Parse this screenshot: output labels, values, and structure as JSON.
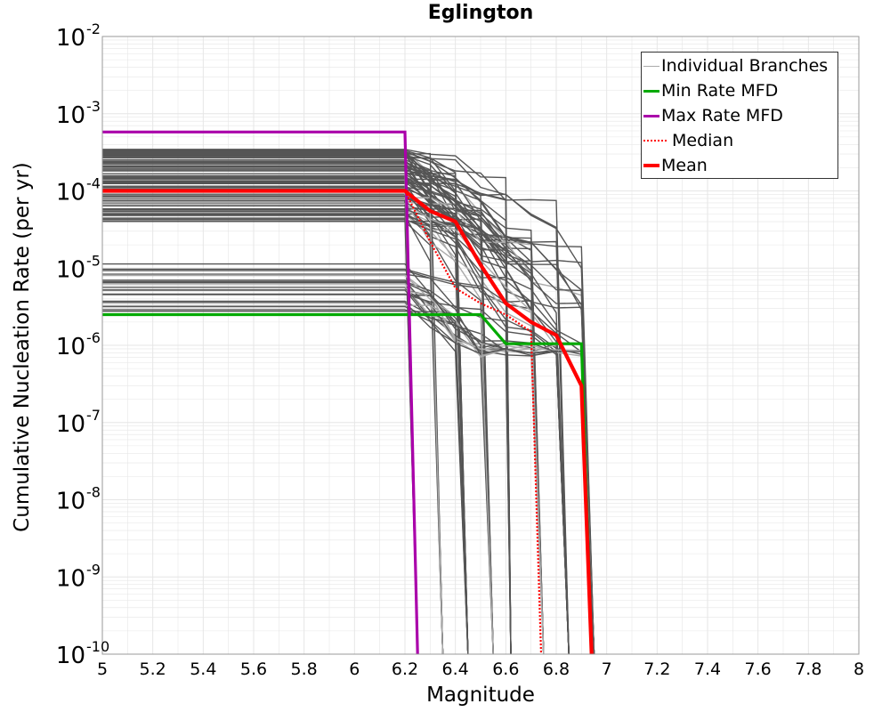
{
  "chart_data": {
    "type": "line",
    "title": "Eglington",
    "xlabel": "Magnitude",
    "ylabel": "Cumulative Nucleation Rate (per yr)",
    "xlim": [
      5,
      8
    ],
    "ylim": [
      1e-10,
      0.01
    ],
    "yscale": "log",
    "grid": true,
    "legend_position": "top-right",
    "x_ticks": [
      "5",
      "5.2",
      "5.4",
      "5.6",
      "5.8",
      "6",
      "6.2",
      "6.4",
      "6.6",
      "6.8",
      "7",
      "7.2",
      "7.4",
      "7.6",
      "7.8",
      "8"
    ],
    "y_ticks": [
      {
        "base": "10",
        "exp": "-2"
      },
      {
        "base": "10",
        "exp": "-3"
      },
      {
        "base": "10",
        "exp": "-4"
      },
      {
        "base": "10",
        "exp": "-5"
      },
      {
        "base": "10",
        "exp": "-6"
      },
      {
        "base": "10",
        "exp": "-7"
      },
      {
        "base": "10",
        "exp": "-8"
      },
      {
        "base": "10",
        "exp": "-9"
      },
      {
        "base": "10",
        "exp": "-10"
      }
    ],
    "series": [
      {
        "name": "Individual Branches",
        "color": "#555555",
        "style": "solid",
        "note": "many gray branch curves, rates ~2e-6 to 4e-4 below M6.2, falling off between M6.2 and M6.95"
      },
      {
        "name": "Min Rate MFD",
        "color": "#00aa00",
        "style": "solid",
        "x": [
          5.0,
          6.2,
          6.3,
          6.4,
          6.5,
          6.6,
          6.7,
          6.8,
          6.9,
          6.9,
          6.94
        ],
        "y": [
          2.5e-06,
          2.5e-06,
          2.5e-06,
          2.5e-06,
          2.5e-06,
          1.05e-06,
          1.05e-06,
          1.05e-06,
          1.05e-06,
          1.05e-06,
          1e-10
        ]
      },
      {
        "name": "Max Rate MFD",
        "color": "#aa00aa",
        "style": "solid",
        "x": [
          5.0,
          6.2,
          6.25
        ],
        "y": [
          0.00058,
          0.00058,
          1e-10
        ]
      },
      {
        "name": "Median",
        "color": "#ff0000",
        "style": "dotted",
        "x": [
          5.0,
          6.2,
          6.3,
          6.4,
          6.5,
          6.6,
          6.7,
          6.74
        ],
        "y": [
          0.0001,
          0.0001,
          2.2e-05,
          5.5e-06,
          3.5e-06,
          2.5e-06,
          1.5e-06,
          1e-10
        ]
      },
      {
        "name": "Mean",
        "color": "#ff0000",
        "style": "solid",
        "x": [
          5.0,
          6.2,
          6.3,
          6.4,
          6.5,
          6.6,
          6.7,
          6.8,
          6.9,
          6.94
        ],
        "y": [
          0.0001,
          0.0001,
          5.5e-05,
          4e-05,
          1.1e-05,
          3.5e-06,
          2e-06,
          1.35e-06,
          3e-07,
          1e-10
        ]
      }
    ]
  },
  "colors": {
    "branch": "#555555",
    "branch_light": "#aaaaaa",
    "grid": "#e6e6e6",
    "axis": "#999999"
  }
}
